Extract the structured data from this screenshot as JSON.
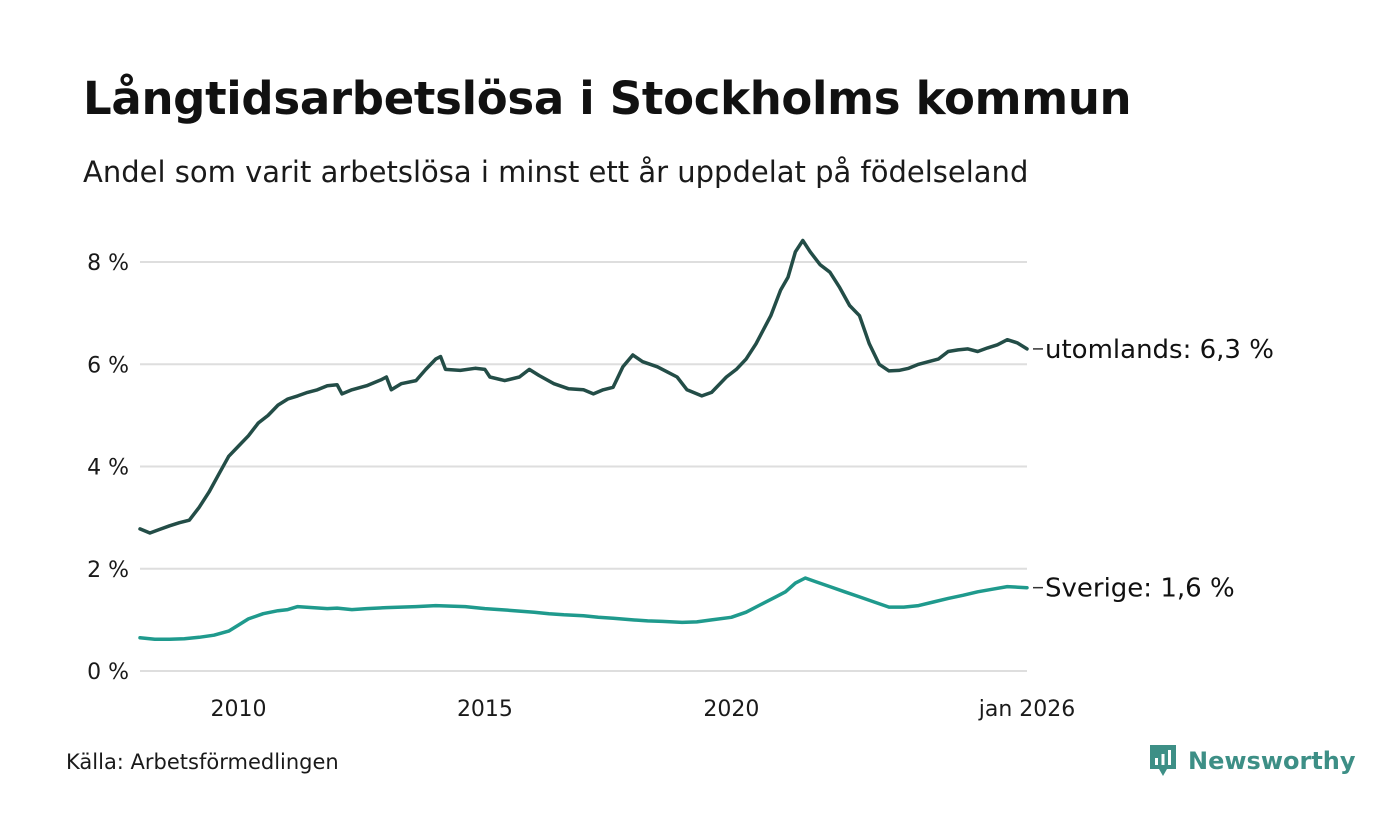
{
  "title": "Långtidsarbetslösa i Stockholms kommun",
  "subtitle": "Andel som varit arbetslösa i minst ett år uppdelat på födelseland",
  "source": "Källa: Arbetsförmedlingen",
  "brand": {
    "name": "Newsworthy",
    "icon": "newsworthy-logo-icon",
    "color": "#3d8f86"
  },
  "chart_data": {
    "type": "line",
    "title": "Långtidsarbetslösa i Stockholms kommun",
    "xlabel": "",
    "ylabel": "",
    "xlim": [
      2008.0,
      2026.0
    ],
    "ylim": [
      0,
      8
    ],
    "grid": true,
    "y_ticks": [
      0,
      2,
      4,
      6,
      8
    ],
    "y_tick_labels": [
      "0 %",
      "2 %",
      "4 %",
      "6 %",
      "8 %"
    ],
    "x_ticks": [
      2010,
      2015,
      2020,
      2026.0
    ],
    "x_tick_labels": [
      "2010",
      "2015",
      "2020",
      "jan 2026"
    ],
    "series": [
      {
        "name": "utomlands",
        "label": "utomlands: 6,3 %",
        "color": "#234d47",
        "points": [
          [
            2008.0,
            2.78
          ],
          [
            2008.2,
            2.7
          ],
          [
            2008.4,
            2.77
          ],
          [
            2008.6,
            2.84
          ],
          [
            2008.8,
            2.9
          ],
          [
            2009.0,
            2.95
          ],
          [
            2009.2,
            3.2
          ],
          [
            2009.4,
            3.5
          ],
          [
            2009.6,
            3.85
          ],
          [
            2009.8,
            4.2
          ],
          [
            2010.0,
            4.4
          ],
          [
            2010.2,
            4.6
          ],
          [
            2010.4,
            4.85
          ],
          [
            2010.6,
            5.0
          ],
          [
            2010.8,
            5.2
          ],
          [
            2011.0,
            5.32
          ],
          [
            2011.2,
            5.38
          ],
          [
            2011.4,
            5.45
          ],
          [
            2011.6,
            5.5
          ],
          [
            2011.8,
            5.58
          ],
          [
            2012.0,
            5.6
          ],
          [
            2012.1,
            5.42
          ],
          [
            2012.3,
            5.5
          ],
          [
            2012.6,
            5.58
          ],
          [
            2012.9,
            5.7
          ],
          [
            2013.0,
            5.75
          ],
          [
            2013.1,
            5.5
          ],
          [
            2013.3,
            5.62
          ],
          [
            2013.6,
            5.68
          ],
          [
            2013.8,
            5.9
          ],
          [
            2014.0,
            6.1
          ],
          [
            2014.1,
            6.15
          ],
          [
            2014.2,
            5.9
          ],
          [
            2014.5,
            5.88
          ],
          [
            2014.8,
            5.92
          ],
          [
            2015.0,
            5.9
          ],
          [
            2015.1,
            5.75
          ],
          [
            2015.4,
            5.68
          ],
          [
            2015.7,
            5.75
          ],
          [
            2015.9,
            5.9
          ],
          [
            2016.1,
            5.78
          ],
          [
            2016.4,
            5.62
          ],
          [
            2016.7,
            5.52
          ],
          [
            2017.0,
            5.5
          ],
          [
            2017.2,
            5.42
          ],
          [
            2017.4,
            5.5
          ],
          [
            2017.6,
            5.55
          ],
          [
            2017.8,
            5.95
          ],
          [
            2018.0,
            6.18
          ],
          [
            2018.2,
            6.05
          ],
          [
            2018.5,
            5.95
          ],
          [
            2018.7,
            5.85
          ],
          [
            2018.9,
            5.75
          ],
          [
            2019.1,
            5.5
          ],
          [
            2019.4,
            5.38
          ],
          [
            2019.6,
            5.45
          ],
          [
            2019.9,
            5.75
          ],
          [
            2020.1,
            5.9
          ],
          [
            2020.3,
            6.1
          ],
          [
            2020.5,
            6.4
          ],
          [
            2020.8,
            6.95
          ],
          [
            2021.0,
            7.45
          ],
          [
            2021.15,
            7.7
          ],
          [
            2021.3,
            8.2
          ],
          [
            2021.45,
            8.42
          ],
          [
            2021.6,
            8.2
          ],
          [
            2021.8,
            7.95
          ],
          [
            2022.0,
            7.8
          ],
          [
            2022.2,
            7.5
          ],
          [
            2022.4,
            7.15
          ],
          [
            2022.6,
            6.95
          ],
          [
            2022.8,
            6.4
          ],
          [
            2023.0,
            6.0
          ],
          [
            2023.2,
            5.87
          ],
          [
            2023.4,
            5.88
          ],
          [
            2023.6,
            5.92
          ],
          [
            2023.8,
            6.0
          ],
          [
            2024.0,
            6.05
          ],
          [
            2024.2,
            6.1
          ],
          [
            2024.4,
            6.25
          ],
          [
            2024.6,
            6.28
          ],
          [
            2024.8,
            6.3
          ],
          [
            2025.0,
            6.25
          ],
          [
            2025.2,
            6.32
          ],
          [
            2025.4,
            6.38
          ],
          [
            2025.6,
            6.48
          ],
          [
            2025.8,
            6.42
          ],
          [
            2026.0,
            6.3
          ]
        ]
      },
      {
        "name": "Sverige",
        "label": "Sverige: 1,6 %",
        "color": "#1f9a8d",
        "points": [
          [
            2008.0,
            0.65
          ],
          [
            2008.3,
            0.62
          ],
          [
            2008.6,
            0.62
          ],
          [
            2008.9,
            0.63
          ],
          [
            2009.2,
            0.66
          ],
          [
            2009.5,
            0.7
          ],
          [
            2009.8,
            0.78
          ],
          [
            2010.0,
            0.9
          ],
          [
            2010.2,
            1.02
          ],
          [
            2010.5,
            1.12
          ],
          [
            2010.8,
            1.18
          ],
          [
            2011.0,
            1.2
          ],
          [
            2011.2,
            1.26
          ],
          [
            2011.5,
            1.24
          ],
          [
            2011.8,
            1.22
          ],
          [
            2012.0,
            1.23
          ],
          [
            2012.3,
            1.2
          ],
          [
            2012.6,
            1.22
          ],
          [
            2013.0,
            1.24
          ],
          [
            2013.3,
            1.25
          ],
          [
            2013.6,
            1.26
          ],
          [
            2014.0,
            1.28
          ],
          [
            2014.3,
            1.27
          ],
          [
            2014.6,
            1.26
          ],
          [
            2015.0,
            1.22
          ],
          [
            2015.3,
            1.2
          ],
          [
            2015.6,
            1.18
          ],
          [
            2016.0,
            1.15
          ],
          [
            2016.3,
            1.12
          ],
          [
            2016.6,
            1.1
          ],
          [
            2017.0,
            1.08
          ],
          [
            2017.3,
            1.05
          ],
          [
            2017.6,
            1.03
          ],
          [
            2018.0,
            1.0
          ],
          [
            2018.3,
            0.98
          ],
          [
            2018.6,
            0.97
          ],
          [
            2019.0,
            0.95
          ],
          [
            2019.3,
            0.96
          ],
          [
            2019.6,
            1.0
          ],
          [
            2020.0,
            1.05
          ],
          [
            2020.3,
            1.15
          ],
          [
            2020.6,
            1.3
          ],
          [
            2020.9,
            1.45
          ],
          [
            2021.1,
            1.55
          ],
          [
            2021.3,
            1.72
          ],
          [
            2021.5,
            1.82
          ],
          [
            2021.7,
            1.75
          ],
          [
            2022.0,
            1.65
          ],
          [
            2022.3,
            1.55
          ],
          [
            2022.6,
            1.45
          ],
          [
            2022.9,
            1.35
          ],
          [
            2023.2,
            1.25
          ],
          [
            2023.5,
            1.25
          ],
          [
            2023.8,
            1.28
          ],
          [
            2024.1,
            1.35
          ],
          [
            2024.4,
            1.42
          ],
          [
            2024.7,
            1.48
          ],
          [
            2025.0,
            1.55
          ],
          [
            2025.3,
            1.6
          ],
          [
            2025.6,
            1.65
          ],
          [
            2026.0,
            1.63
          ]
        ]
      }
    ]
  }
}
